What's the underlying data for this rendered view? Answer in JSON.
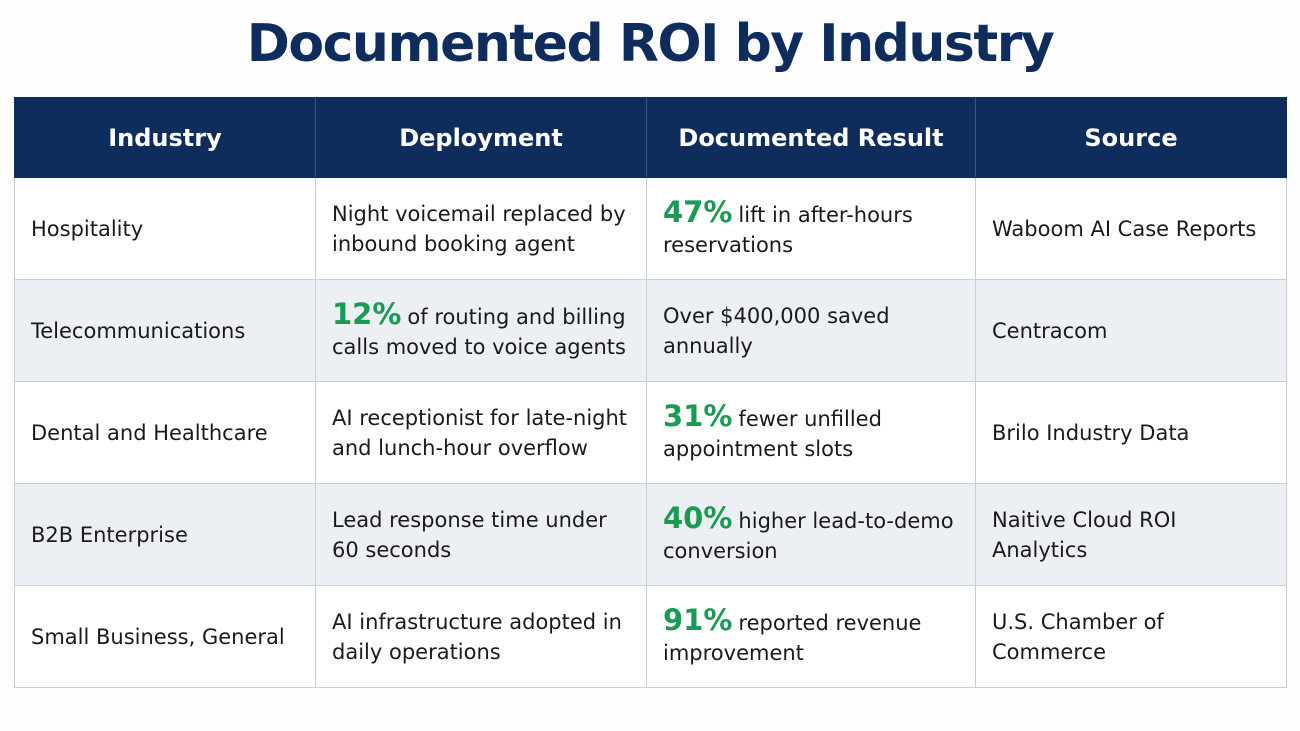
{
  "title": "Documented ROI by Industry",
  "colors": {
    "header_bg": "#0f2d5c",
    "highlight_green": "#1a9a52",
    "stripe_bg": "#eceff4"
  },
  "table": {
    "headers": [
      "Industry",
      "Deployment",
      "Documented Result",
      "Source"
    ],
    "rows": [
      {
        "industry": "Hospitality",
        "deployment": {
          "highlight": "",
          "text": "Night voicemail replaced by inbound booking agent"
        },
        "result": {
          "highlight": "47%",
          "text": "lift in after-hours reservations"
        },
        "source": "Waboom AI Case Reports"
      },
      {
        "industry": "Telecommunications",
        "deployment": {
          "highlight": "12%",
          "text": "of routing and billing calls moved to voice agents"
        },
        "result": {
          "highlight": "",
          "text": "Over $400,000 saved annually"
        },
        "source": "Centracom"
      },
      {
        "industry": "Dental and Healthcare",
        "deployment": {
          "highlight": "",
          "text": "AI receptionist for late-night and lunch-hour overflow"
        },
        "result": {
          "highlight": "31%",
          "text": "fewer unfilled appointment slots"
        },
        "source": "Brilo Industry Data"
      },
      {
        "industry": "B2B Enterprise",
        "deployment": {
          "highlight": "",
          "text": "Lead response time under 60 seconds"
        },
        "result": {
          "highlight": "40%",
          "text": "higher lead-to-demo conversion"
        },
        "source": "Naitive Cloud ROI Analytics"
      },
      {
        "industry": "Small Business, General",
        "deployment": {
          "highlight": "",
          "text": "AI infrastructure adopted in daily operations"
        },
        "result": {
          "highlight": "91%",
          "text": "reported revenue improvement"
        },
        "source": "U.S. Chamber of Commerce"
      }
    ]
  }
}
